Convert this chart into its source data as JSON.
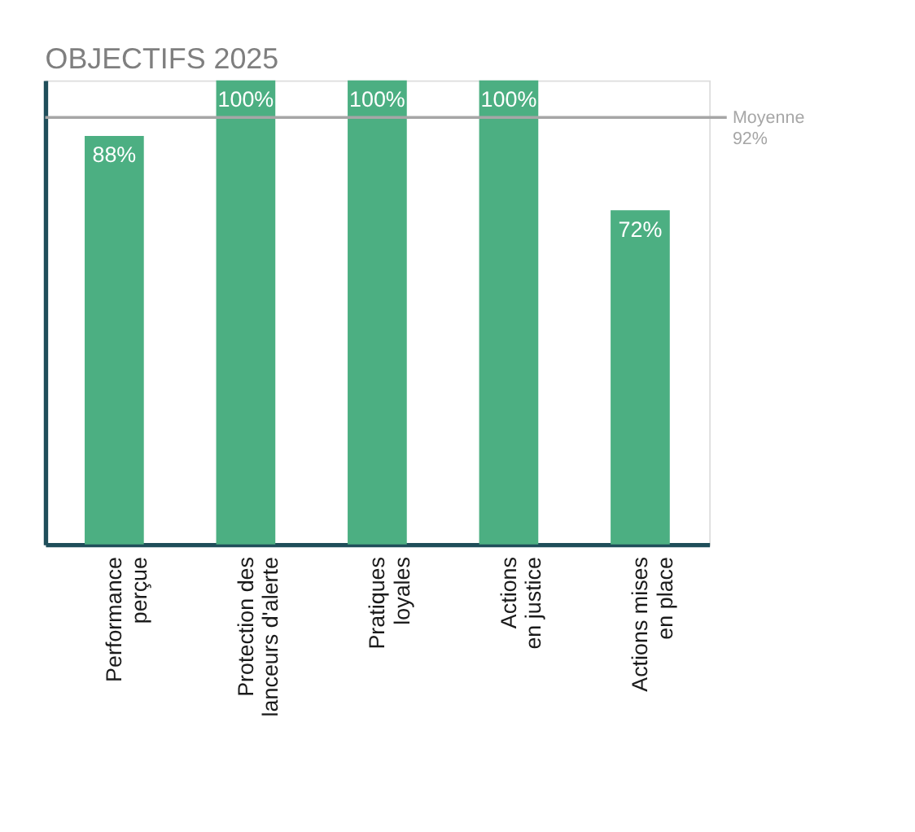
{
  "chart_data": {
    "type": "bar",
    "title": "OBJECTIFS 2025",
    "categories": [
      "Performance\nperçue",
      "Protection des\nlanceurs d'alerte",
      "Pratiques\nloyales",
      "Actions\nen justice",
      "Actions mises\nen place"
    ],
    "values": [
      88,
      100,
      100,
      100,
      72
    ],
    "value_labels": [
      "88%",
      "100%",
      "100%",
      "100%",
      "72%"
    ],
    "color": "#4caf82",
    "ylim": [
      0,
      100
    ],
    "ref_lines": [
      {
        "axis": "y",
        "value": 92,
        "label": "Moyenne\n92%",
        "color": "#a6a6a6"
      }
    ],
    "grid": false,
    "tick_labels": "x"
  }
}
